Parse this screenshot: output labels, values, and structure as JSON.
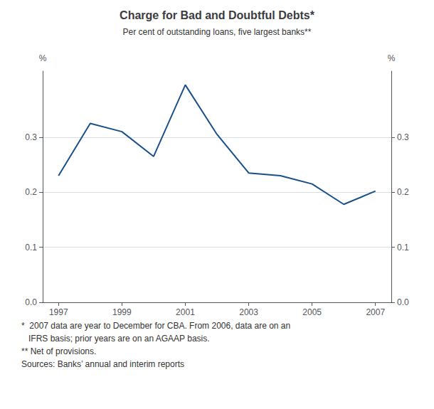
{
  "chart_data": {
    "type": "line",
    "title": "Charge for Bad and Doubtful Debts*",
    "subtitle": "Per cent of outstanding loans, five largest banks**",
    "x": [
      1997,
      1998,
      1999,
      2000,
      2001,
      2002,
      2003,
      2004,
      2005,
      2006,
      2007
    ],
    "values": [
      0.23,
      0.325,
      0.31,
      0.265,
      0.395,
      0.305,
      0.235,
      0.23,
      0.215,
      0.178,
      0.202
    ],
    "color": "#1a4f8a",
    "xlim": [
      1996.5,
      2007.5
    ],
    "xticks": [
      1997,
      1999,
      2001,
      2003,
      2005,
      2007
    ],
    "ylim": [
      0.0,
      0.42
    ],
    "yticks": [
      {
        "value": 0.0,
        "label": "0.0"
      },
      0.1,
      0.2,
      0.3
    ],
    "ylabel": "%",
    "y2lim": [
      0.0,
      0.42
    ],
    "y2ticks": [
      {
        "value": 0.0,
        "label": "0.0"
      },
      0.1,
      0.2,
      0.3
    ],
    "y2label": "%",
    "grid": true,
    "annotations": [
      "*  2007 data are year to December for CBA. From 2006, data are on an",
      "   IFRS basis; prior years are on an AGAAP basis.",
      "** Net of provisions.",
      "Sources: Banks’ annual and interim reports"
    ]
  }
}
